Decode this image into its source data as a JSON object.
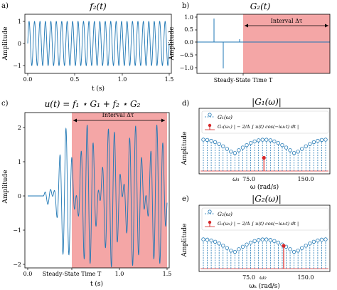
{
  "chart_data": [
    {
      "panel": "a)",
      "type": "line",
      "title": "f_2(t)",
      "xlabel": "t (s)",
      "ylabel": "Amplitude",
      "xlim": [
        0,
        1.55
      ],
      "ylim": [
        -1.1,
        1.1
      ],
      "xticks": [
        0.0,
        0.5,
        1.0,
        1.5
      ],
      "xtick_labels": [
        "0.0",
        "0.5",
        "1.0",
        "1.5"
      ],
      "yticks": [
        -1,
        0,
        1
      ],
      "ytick_labels": [
        "−1",
        "0",
        "1"
      ],
      "series": [
        {
          "kind": "sine",
          "amplitude": 1.0,
          "cycles": 26,
          "t0": 0.0,
          "t1": 1.5,
          "color": "#1f77b4"
        }
      ]
    },
    {
      "panel": "b)",
      "type": "line",
      "title": "G_2(t)",
      "xlabel": "Steady-State Time T",
      "ylabel": "Amplitude",
      "xlim": [
        0,
        1.55
      ],
      "ylim": [
        -1.1,
        1.1
      ],
      "yticks": [
        -1.0,
        -0.5,
        0.0,
        0.5,
        1.0
      ],
      "ytick_labels": [
        "−1.0",
        "−0.5",
        "0.0",
        "0.5",
        "1.0"
      ],
      "shaded_interval": [
        0.5,
        1.5
      ],
      "annotation": "Interval Δτ",
      "series": [
        {
          "kind": "impulses",
          "points": [
            [
              0.3,
              0.95
            ],
            [
              0.37,
              -1.0
            ],
            [
              0.5,
              0.1
            ]
          ],
          "color": "#1f77b4"
        }
      ]
    },
    {
      "panel": "c)",
      "type": "line",
      "title": "u(t) = f_1 ⋆ G_1 + f_2 ⋆ G_2",
      "xlabel": "t (s)",
      "xlabel2": "Steady-State Time T",
      "ylabel": "Amplitude",
      "xlim": [
        0,
        1.55
      ],
      "ylim": [
        -2.25,
        2.3
      ],
      "xticks": [
        0.0,
        0.5,
        1.0,
        1.5
      ],
      "xtick_labels": [
        "0.0",
        "0.5",
        "1.0",
        "1.5"
      ],
      "yticks": [
        -2,
        -1,
        0,
        1,
        2
      ],
      "ytick_labels": [
        "−2",
        "−1",
        "0",
        "1",
        "2"
      ],
      "shaded_interval": [
        0.5,
        1.5
      ],
      "annotation": "Interval Δτ",
      "series": [
        {
          "kind": "beat",
          "start": 0.17,
          "amplitude": 2.0,
          "f1_cycles": 20,
          "f2_cycles": 26,
          "color": "#1f77b4"
        }
      ]
    },
    {
      "panel": "d)",
      "type": "stem",
      "title": "|G_1(ω)|",
      "xlabel": "ω (rad/s)",
      "ylabel": "Amplitude",
      "xtick_labels": [
        "ω_1",
        "75.0",
        "150.0"
      ],
      "legend": [
        "G_1(ω)",
        "G_1(ω_1) | − 2/Δ ∫_T^{T+Δτ} u(t) cos(−iω_1 t) dt |"
      ],
      "legend_position": "upper center",
      "n_stems": 32,
      "highlight": {
        "label": "ω_1",
        "index": 15,
        "value": 0.42
      }
    },
    {
      "panel": "e)",
      "type": "stem",
      "title": "|G_2(ω)|",
      "xlabel": "ω_k (rad/s)",
      "ylabel": "Amplitude",
      "xtick_labels": [
        "75.0",
        "ω_2",
        "150.0"
      ],
      "legend": [
        "G_2(ω)",
        "G_2(ω_2) | − 2/Δ ∫_T^{T+Δτ} u(t) cos(−iω_2 t) dt |"
      ],
      "legend_position": "upper center",
      "n_stems": 32,
      "highlight": {
        "label": "ω_2",
        "index": 20,
        "value": 0.78
      }
    }
  ],
  "panels": {
    "a": {
      "label": "a)",
      "title": "f₂(t)",
      "ylabel": "Amplitude",
      "xlabel": "t (s)",
      "xticks": [
        "0.0",
        "0.5",
        "1.0",
        "1.5"
      ],
      "yticks": [
        "1",
        "0",
        "−1"
      ]
    },
    "b": {
      "label": "b)",
      "title": "G₂(t)",
      "ylabel": "Amplitude",
      "xlabel": "Steady-State Time T",
      "yticks": [
        "1.0",
        "0.5",
        "0.0",
        "−0.5",
        "−1.0"
      ],
      "interval": "Interval Δτ"
    },
    "c": {
      "label": "c)",
      "title": "u(t) = f₁ ⋆ G₁ + f₂ ⋆ G₂",
      "ylabel": "Amplitude",
      "xlabel": "t (s)",
      "xlabel2": "Steady-State Time T",
      "xticks": [
        "0.0",
        "0.5",
        "1.0",
        "1.5"
      ],
      "yticks": [
        "2",
        "1",
        "0",
        "−1",
        "−2"
      ],
      "interval": "Interval Δτ"
    },
    "d": {
      "label": "d)",
      "title": "|G₁(ω)|",
      "ylabel": "Amplitude",
      "xlabel": "ω (rad/s)",
      "tick_w": "ω₁",
      "tick_75": "75.0",
      "tick_150": "150.0",
      "legend1": "G₁(ω)",
      "legend2": "G₁(ω₁) | − 2/Δ ∫ u(t) cos(−iω₁t) dt |"
    },
    "e": {
      "label": "e)",
      "title": "|G₂(ω)|",
      "ylabel": "Amplitude",
      "xlabel": "ωₖ (rad/s)",
      "tick_w": "ω₂",
      "tick_75": "75.0",
      "tick_150": "150.0",
      "legend1": "G₂(ω)",
      "legend2": "G₂(ω₂) | − 2/Δ ∫ u(t) cos(−iω₂t) dt |"
    }
  },
  "colors": {
    "line": "#1f77b4",
    "shade": "#f4a6a6",
    "highlight": "#d62728"
  }
}
